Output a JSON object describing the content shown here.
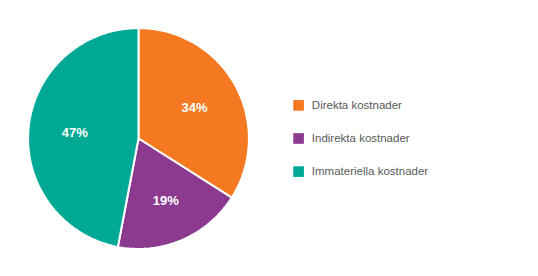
{
  "chart_data": {
    "type": "pie",
    "categories": [
      "Direkta kostnader",
      "Indirekta kostnader",
      "Immateriella kostnader"
    ],
    "values": [
      34,
      19,
      47
    ],
    "value_labels": [
      "34%",
      "19%",
      "47%"
    ],
    "colors": [
      "#F47920",
      "#8B3A8F",
      "#00A896"
    ],
    "data_labels": true,
    "legend": "right"
  }
}
